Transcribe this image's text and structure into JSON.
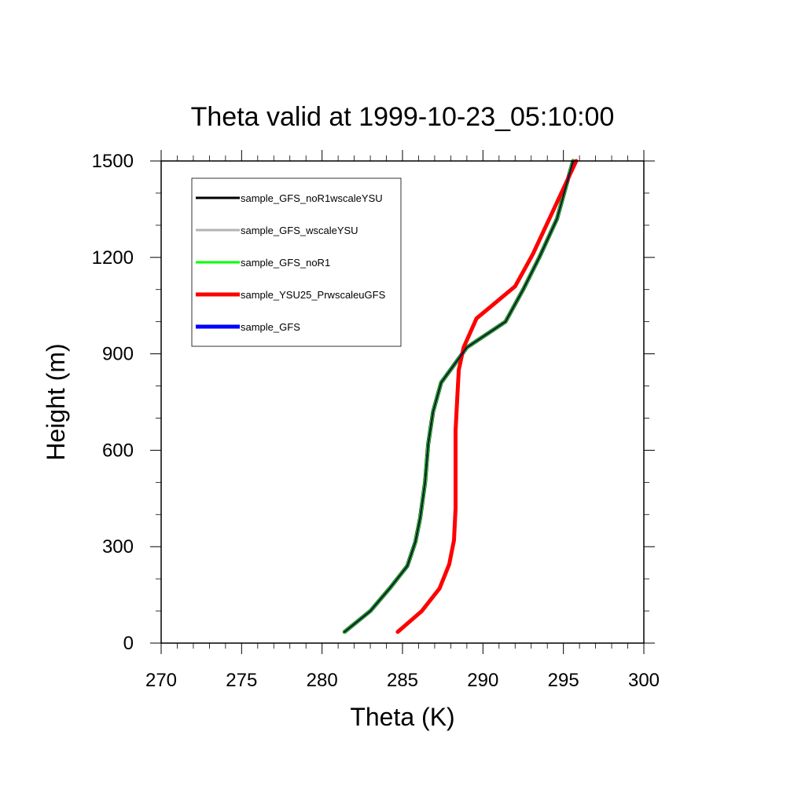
{
  "chart_data": {
    "type": "line",
    "title": "Theta valid at 1999-10-23_05:10:00",
    "xlabel": "Theta (K)",
    "ylabel": "Height (m)",
    "xlim": [
      270,
      300
    ],
    "ylim": [
      0,
      1500
    ],
    "xticks": [
      270,
      275,
      280,
      285,
      290,
      295,
      300
    ],
    "yticks": [
      0,
      300,
      600,
      900,
      1200,
      1500
    ],
    "x_tick_labels": [
      "270",
      "275",
      "280",
      "285",
      "290",
      "295",
      "300"
    ],
    "y_tick_labels": [
      "0",
      "300",
      "600",
      "900",
      "1200",
      "1500"
    ],
    "grid": false,
    "legend_position": "top-left",
    "series": [
      {
        "name": "sample_GFS_noR1wscaleYSU",
        "color": "#000000",
        "x": [
          281.4,
          283.0,
          284.2,
          285.3,
          285.8,
          286.1,
          286.4,
          286.6,
          286.9,
          287.4,
          289.0,
          291.4,
          292.5,
          293.5,
          294.6,
          295.6
        ],
        "y": [
          35,
          100,
          170,
          240,
          315,
          390,
          500,
          620,
          720,
          810,
          920,
          1000,
          1100,
          1200,
          1320,
          1500
        ]
      },
      {
        "name": "sample_GFS_wscaleYSU",
        "color": "#b3b3b3",
        "x": [
          281.4,
          283.0,
          284.2,
          285.3,
          285.8,
          286.1,
          286.4,
          286.6,
          286.9,
          287.4,
          289.0,
          291.4,
          292.5,
          293.5,
          294.6,
          295.6
        ],
        "y": [
          35,
          100,
          170,
          240,
          315,
          390,
          500,
          620,
          720,
          810,
          920,
          1000,
          1100,
          1200,
          1320,
          1500
        ]
      },
      {
        "name": "sample_GFS_noR1",
        "color": "#00ff00",
        "x": [
          281.4,
          283.0,
          284.2,
          285.3,
          285.8,
          286.1,
          286.4,
          286.6,
          286.9,
          287.4,
          289.0,
          291.4,
          292.5,
          293.5,
          294.6,
          295.6
        ],
        "y": [
          35,
          100,
          170,
          240,
          315,
          390,
          500,
          620,
          720,
          810,
          920,
          1000,
          1100,
          1200,
          1320,
          1500
        ]
      },
      {
        "name": "sample_YSU25_PrwscaleuGFS",
        "color": "#ff0000",
        "x": [
          284.7,
          286.2,
          287.3,
          287.9,
          288.2,
          288.3,
          288.3,
          288.3,
          288.4,
          288.5,
          288.8,
          289.6,
          292.0,
          293.1,
          294.5,
          295.8
        ],
        "y": [
          35,
          100,
          170,
          245,
          320,
          420,
          540,
          660,
          760,
          850,
          920,
          1010,
          1110,
          1210,
          1360,
          1500
        ]
      },
      {
        "name": "sample_GFS",
        "color": "#0000ff",
        "x": [
          281.4,
          283.0,
          284.2,
          285.3,
          285.8,
          286.1,
          286.4,
          286.6,
          286.9,
          287.4,
          289.0,
          291.4,
          292.5,
          293.5,
          294.6,
          295.6
        ],
        "y": [
          35,
          100,
          170,
          240,
          315,
          390,
          500,
          620,
          720,
          810,
          920,
          1000,
          1100,
          1200,
          1320,
          1500
        ]
      }
    ]
  }
}
